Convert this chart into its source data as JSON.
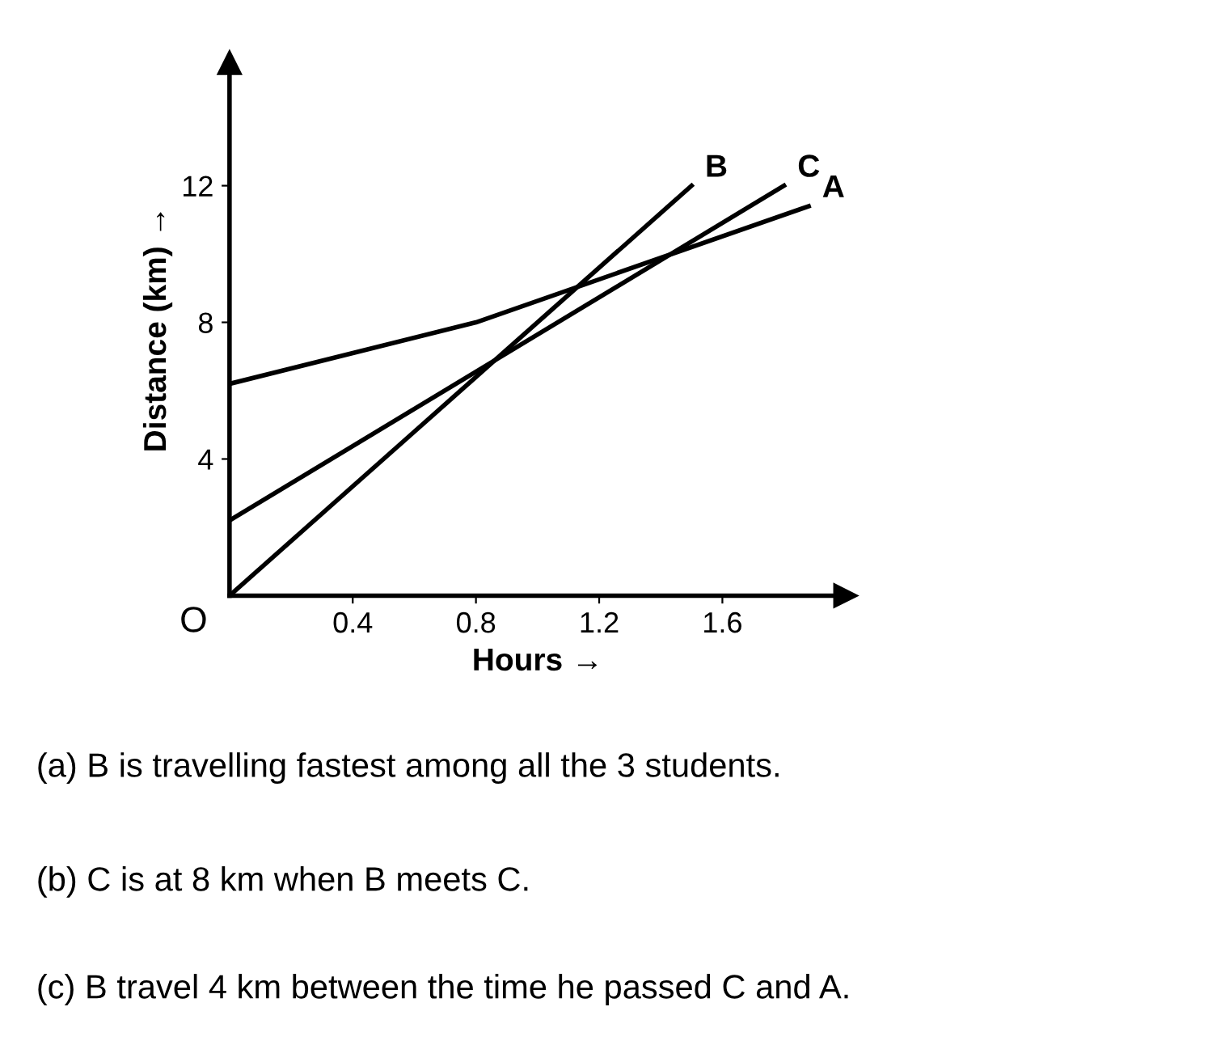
{
  "chart_data": {
    "type": "line",
    "xlabel": "Hours →",
    "ylabel": "Distance (km) →",
    "xlim": [
      0,
      2.0
    ],
    "ylim": [
      0,
      15.6
    ],
    "xticks": [
      0.4,
      0.8,
      1.2,
      1.6
    ],
    "yticks": [
      4,
      8,
      12
    ],
    "grid": false,
    "legend": false,
    "marker": "none",
    "line_style": "solid",
    "series": [
      {
        "name": "A",
        "color": "#000000",
        "x": [
          0,
          0.8,
          1.88
        ],
        "values": [
          6.2,
          8,
          11.4
        ]
      },
      {
        "name": "B",
        "color": "#000000",
        "x": [
          0,
          1.5
        ],
        "values": [
          0,
          12
        ]
      },
      {
        "name": "C",
        "color": "#000000",
        "x": [
          0,
          1.8
        ],
        "values": [
          2.2,
          12
        ]
      }
    ],
    "annotations": [
      {
        "text": "O",
        "x": 0,
        "y": 0
      },
      "(a) B is travelling fastest among all the 3 students.",
      "(b) C is at 8 km when B meets C.",
      "(c) B travel 4 km between the time he passed C and A."
    ]
  }
}
